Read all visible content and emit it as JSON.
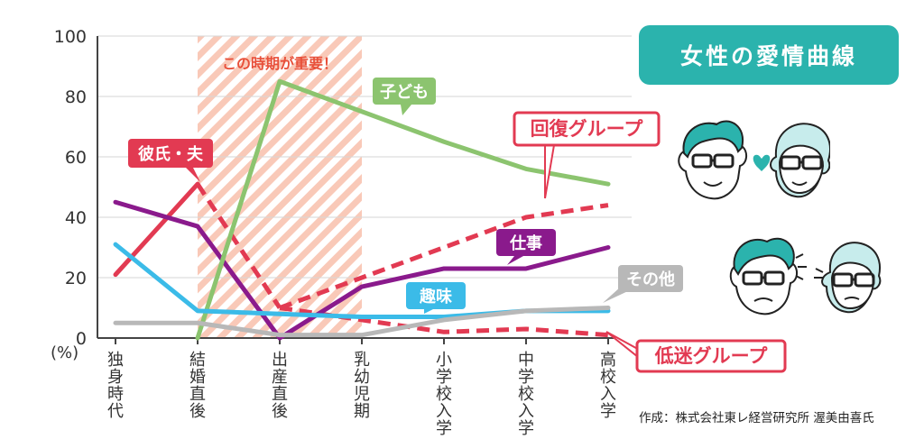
{
  "title": "女性の愛情曲線",
  "credit": "作成：株式会社東レ経営研究所 渥美由喜氏",
  "highlight_label": "この時期が重要！",
  "chart_data": {
    "type": "line",
    "categories": [
      "独身時代",
      "結婚直後",
      "出産直後",
      "乳幼児期",
      "小学校入学",
      "中学校入学",
      "高校入学"
    ],
    "y_unit": "(%)",
    "ylim": [
      0,
      100
    ],
    "yticks": [
      0,
      20,
      40,
      60,
      80,
      100
    ],
    "grid": true,
    "highlight_range": [
      "結婚直後",
      "乳幼児期"
    ],
    "series": [
      {
        "name": "彼氏・夫",
        "color": "#e23a52",
        "style": "solid",
        "x": [
          0,
          1
        ],
        "values": [
          21,
          51
        ]
      },
      {
        "name": "彼氏・夫",
        "color": "#e23a52",
        "style": "dashed",
        "x": [
          1,
          2
        ],
        "values": [
          51,
          10
        ]
      },
      {
        "name": "回復グループ",
        "color": "#e23a52",
        "style": "dashed",
        "x": [
          2,
          3,
          4,
          5,
          6
        ],
        "values": [
          10,
          20,
          30,
          40,
          44
        ]
      },
      {
        "name": "低迷グループ",
        "color": "#e23a52",
        "style": "dashed",
        "x": [
          2,
          3,
          4,
          5,
          6
        ],
        "values": [
          10,
          6,
          2,
          3,
          1
        ]
      },
      {
        "name": "仕事",
        "color": "#8a1a8c",
        "style": "solid",
        "x": [
          0,
          1,
          2,
          3,
          4,
          5,
          6
        ],
        "values": [
          45,
          37,
          0,
          17,
          23,
          23,
          30
        ]
      },
      {
        "name": "子ども",
        "color": "#8cc46f",
        "style": "solid",
        "x": [
          1,
          2,
          3,
          4,
          5,
          6
        ],
        "values": [
          0,
          85,
          75,
          65,
          56,
          51
        ]
      },
      {
        "name": "趣味",
        "color": "#3bbbe8",
        "style": "solid",
        "x": [
          0,
          1,
          2,
          3,
          4,
          5,
          6
        ],
        "values": [
          31,
          9,
          8,
          7,
          7,
          9,
          9
        ]
      },
      {
        "name": "その他",
        "color": "#b8b8b8",
        "style": "solid",
        "x": [
          0,
          1,
          2,
          3,
          4,
          5,
          6
        ],
        "values": [
          5,
          5,
          1,
          1,
          6,
          9,
          10
        ]
      }
    ],
    "labels": [
      {
        "text": "彼氏・夫",
        "color": "#e23a52",
        "style": "filled"
      },
      {
        "text": "子ども",
        "color": "#8cc46f",
        "style": "filled"
      },
      {
        "text": "回復グループ",
        "color": "#e23a52",
        "style": "outline"
      },
      {
        "text": "仕事",
        "color": "#8a1a8c",
        "style": "filled"
      },
      {
        "text": "趣味",
        "color": "#3bbbe8",
        "style": "filled"
      },
      {
        "text": "その他",
        "color": "#b8b8b8",
        "style": "filled"
      },
      {
        "text": "低迷グループ",
        "color": "#e23a52",
        "style": "outline"
      }
    ]
  },
  "colors": {
    "accent": "#2bb3ad",
    "highlight": "#f9c9b8",
    "label_red": "#e8503a"
  }
}
